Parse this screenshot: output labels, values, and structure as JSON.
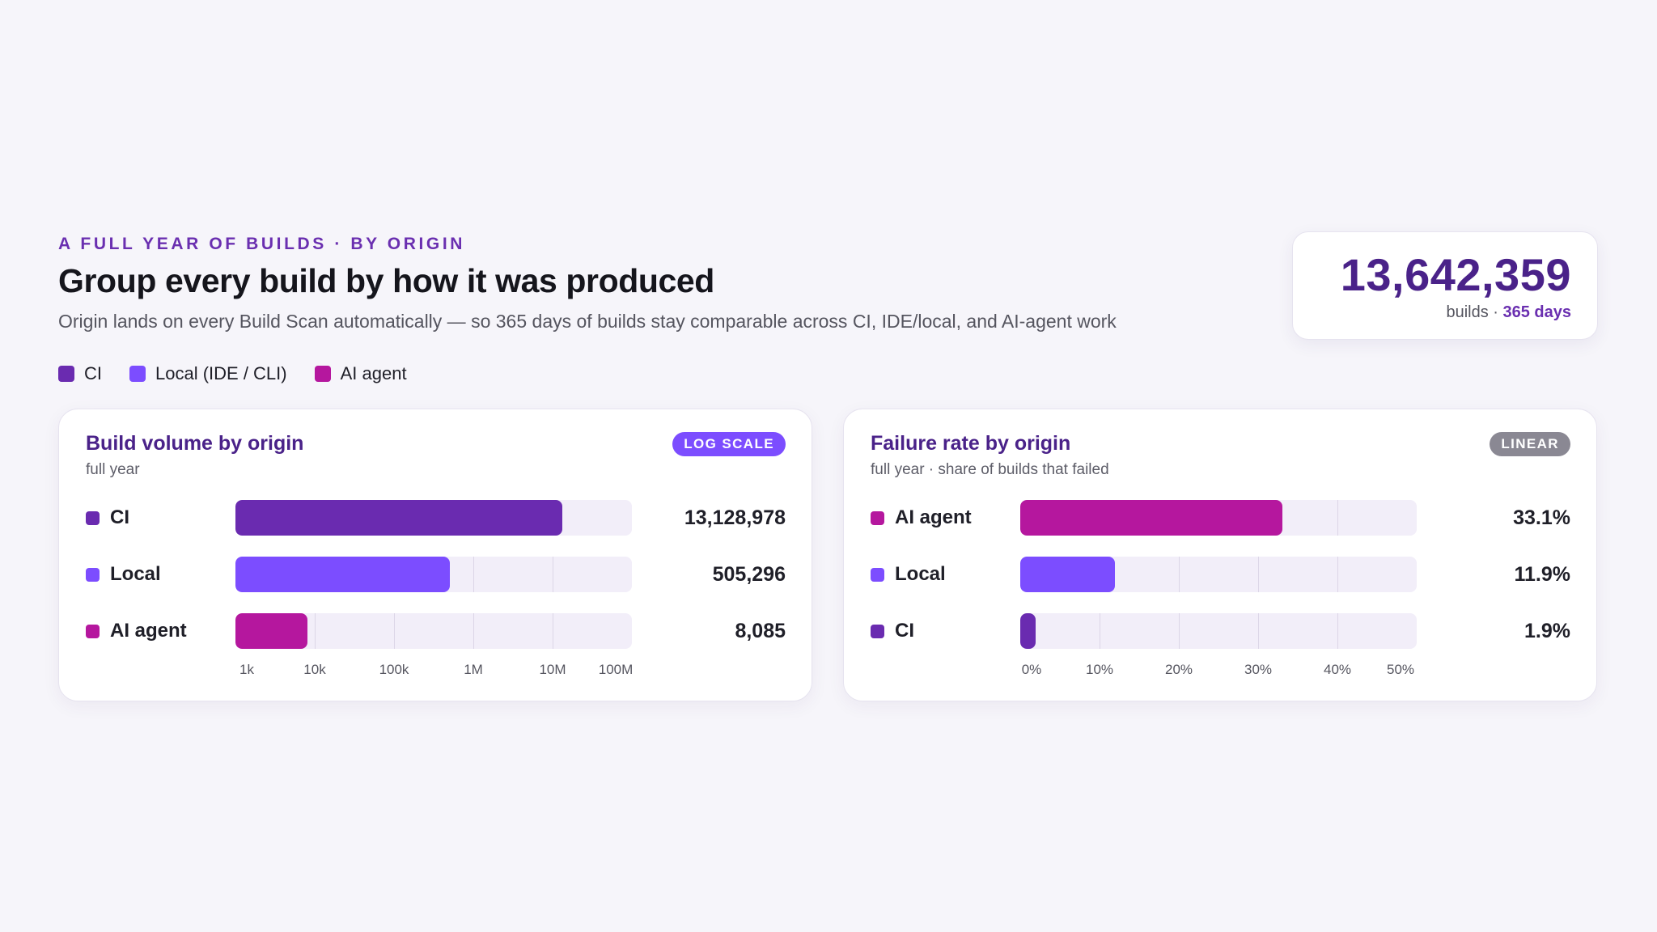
{
  "header": {
    "eyebrow": "A FULL YEAR OF BUILDS · BY ORIGIN",
    "title": "Group every build by how it was produced",
    "subtitle": "Origin lands on every Build Scan automatically — so 365 days of builds stay comparable across CI, IDE/local, and AI-agent work"
  },
  "legend": [
    {
      "label": "CI",
      "color": "#6a2bb0"
    },
    {
      "label": "Local (IDE / CLI)",
      "color": "#7c4dff"
    },
    {
      "label": "AI agent",
      "color": "#b5179e"
    }
  ],
  "stat": {
    "value": "13,642,359",
    "caption_prefix": "builds · ",
    "caption_accent": "365 days"
  },
  "colors": {
    "ci": "#6a2bb0",
    "local": "#7c4dff",
    "ai_agent": "#b5179e",
    "accent": "#4a2289"
  },
  "chart_data": [
    {
      "type": "bar",
      "orientation": "horizontal",
      "title": "Build volume by origin",
      "subtitle": "full year",
      "badge": "LOG SCALE",
      "scale": "log",
      "xlim": [
        1000,
        100000000
      ],
      "ticks": [
        1000,
        10000,
        100000,
        1000000,
        10000000,
        100000000
      ],
      "tick_labels": [
        "1k",
        "10k",
        "100k",
        "1M",
        "10M",
        "100M"
      ],
      "categories": [
        "CI",
        "Local",
        "AI agent"
      ],
      "values": [
        13128978,
        505296,
        8085
      ],
      "value_labels": [
        "13,128,978",
        "505,296",
        "8,085"
      ],
      "colors": [
        "#6a2bb0",
        "#7c4dff",
        "#b5179e"
      ],
      "grid": true
    },
    {
      "type": "bar",
      "orientation": "horizontal",
      "title": "Failure rate by origin",
      "subtitle": "full year · share of builds that failed",
      "badge": "LINEAR",
      "scale": "linear",
      "xlim": [
        0,
        50
      ],
      "ticks": [
        0,
        10,
        20,
        30,
        40,
        50
      ],
      "tick_labels": [
        "0%",
        "10%",
        "20%",
        "30%",
        "40%",
        "50%"
      ],
      "categories": [
        "AI agent",
        "Local",
        "CI"
      ],
      "values": [
        33.1,
        11.9,
        1.9
      ],
      "value_labels": [
        "33.1%",
        "11.9%",
        "1.9%"
      ],
      "colors": [
        "#b5179e",
        "#7c4dff",
        "#6a2bb0"
      ],
      "grid": true
    }
  ]
}
